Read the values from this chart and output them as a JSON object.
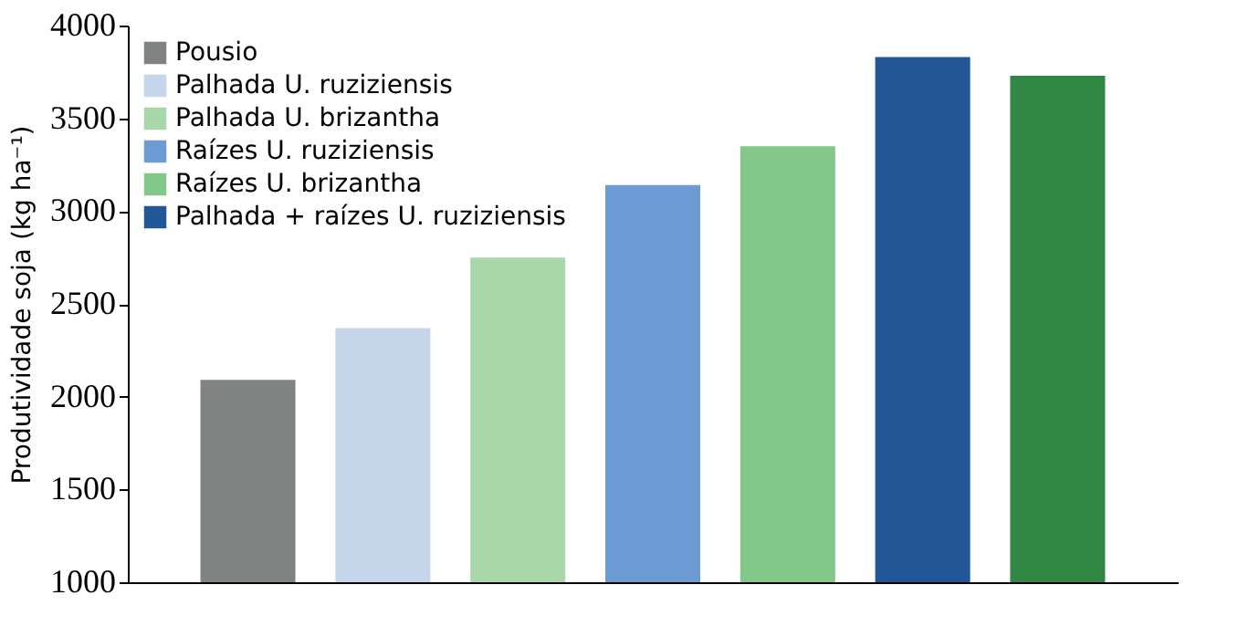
{
  "chart_data": {
    "type": "bar",
    "ylabel": "Produtividade soja (kg ha⁻¹)",
    "categories": [
      null,
      null,
      null,
      null,
      null,
      null,
      null
    ],
    "series": [
      {
        "name": "Pousio",
        "color": "#7f8382",
        "values": [
          2090,
          null,
          null,
          null,
          null,
          null,
          null
        ]
      },
      {
        "name": "Palhada U. ruziziensis",
        "color": "#c5d5ea",
        "values": [
          null,
          2370,
          null,
          null,
          null,
          null,
          null
        ]
      },
      {
        "name": "Palhada U. brizantha",
        "color": "#a8d8aa",
        "values": [
          null,
          null,
          2750,
          null,
          null,
          null,
          null
        ]
      },
      {
        "name": "Raízes U. ruziziensis",
        "color": "#6b9bd2",
        "values": [
          null,
          null,
          null,
          3140,
          null,
          null,
          null
        ]
      },
      {
        "name": "Raízes U. brizantha",
        "color": "#84c78a",
        "values": [
          null,
          null,
          null,
          null,
          3350,
          null,
          null
        ]
      },
      {
        "name": "Palhada + raízes U. ruziziensis",
        "color": "#215797",
        "values": [
          null,
          null,
          null,
          null,
          null,
          3830,
          null
        ]
      },
      {
        "color": "#318744",
        "values": [
          null,
          null,
          null,
          null,
          null,
          null,
          3730
        ]
      }
    ],
    "ylim": [
      1000,
      4000
    ],
    "yticks": [
      1000,
      1500,
      2000,
      2500,
      3000,
      3500,
      4000
    ],
    "grid": false,
    "legend": "top left"
  }
}
